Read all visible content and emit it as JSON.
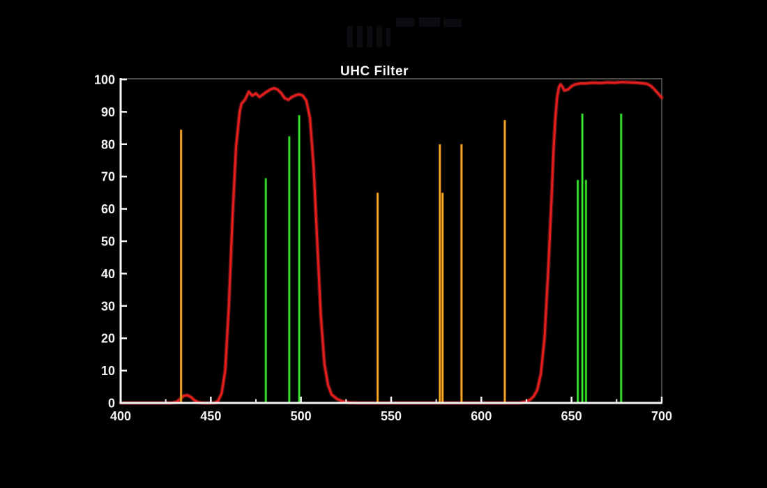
{
  "title": "UHC Filter",
  "chart_data": {
    "type": "line",
    "title": "UHC Filter",
    "xlabel": "",
    "ylabel": "",
    "xlim": [
      400,
      700
    ],
    "ylim": [
      0,
      100
    ],
    "x_major_ticks": [
      400,
      450,
      500,
      550,
      600,
      650,
      700
    ],
    "x_minor_ticks": [
      425,
      475,
      525,
      575,
      625,
      675
    ],
    "y_ticks": [
      0,
      10,
      20,
      30,
      40,
      50,
      60,
      70,
      80,
      90,
      100
    ],
    "grid": "off",
    "legend": "none",
    "background_color": "#000000",
    "axis_color": "#f5f5f5",
    "border_color": "#4a4a4a",
    "label_color": "#f5f5f5",
    "series": [
      {
        "name": "filter-transmission-curve",
        "type": "line",
        "color": "#e51c1c",
        "glow_color": "#ff3a3a",
        "points": [
          [
            400,
            0
          ],
          [
            428,
            0
          ],
          [
            431,
            0.3
          ],
          [
            433,
            1.2
          ],
          [
            435,
            2.2
          ],
          [
            437,
            2.4
          ],
          [
            439,
            1.8
          ],
          [
            441,
            0.8
          ],
          [
            443,
            0.2
          ],
          [
            446,
            0
          ],
          [
            452,
            0
          ],
          [
            454,
            0.6
          ],
          [
            456,
            3
          ],
          [
            458,
            10
          ],
          [
            460,
            30
          ],
          [
            462,
            57
          ],
          [
            464,
            79
          ],
          [
            466,
            90
          ],
          [
            467,
            92.5
          ],
          [
            469,
            93.8
          ],
          [
            471,
            96.2
          ],
          [
            473,
            95
          ],
          [
            475,
            95.7
          ],
          [
            477,
            94.6
          ],
          [
            479,
            95.4
          ],
          [
            481,
            96.2
          ],
          [
            483,
            96.9
          ],
          [
            485,
            97.3
          ],
          [
            487,
            96.9
          ],
          [
            489,
            95.8
          ],
          [
            491,
            94.2
          ],
          [
            493,
            93.7
          ],
          [
            495,
            94.6
          ],
          [
            497,
            95.1
          ],
          [
            499,
            95.4
          ],
          [
            501,
            95
          ],
          [
            503,
            93.4
          ],
          [
            505,
            88
          ],
          [
            507,
            73
          ],
          [
            509,
            50
          ],
          [
            511,
            27
          ],
          [
            513,
            12
          ],
          [
            515,
            5.5
          ],
          [
            517,
            2.6
          ],
          [
            520,
            1.2
          ],
          [
            523,
            0.5
          ],
          [
            527,
            0.1
          ],
          [
            532,
            0
          ],
          [
            600,
            0
          ],
          [
            621,
            0
          ],
          [
            624,
            0.3
          ],
          [
            627,
            1
          ],
          [
            629,
            2
          ],
          [
            631,
            4
          ],
          [
            633,
            9
          ],
          [
            635,
            20
          ],
          [
            637,
            40
          ],
          [
            639,
            64
          ],
          [
            640,
            78
          ],
          [
            641,
            88
          ],
          [
            642,
            94.5
          ],
          [
            643,
            97.6
          ],
          [
            644,
            98.5
          ],
          [
            645,
            97.7
          ],
          [
            646,
            96.6
          ],
          [
            648,
            96.9
          ],
          [
            650,
            97.9
          ],
          [
            652,
            98.5
          ],
          [
            655,
            98.8
          ],
          [
            658,
            98.8
          ],
          [
            662,
            99
          ],
          [
            666,
            98.9
          ],
          [
            670,
            99.1
          ],
          [
            674,
            99
          ],
          [
            678,
            99.2
          ],
          [
            682,
            99.1
          ],
          [
            686,
            99
          ],
          [
            690,
            98.8
          ],
          [
            692,
            98.6
          ],
          [
            694,
            98
          ],
          [
            696,
            96.9
          ],
          [
            698,
            95.7
          ],
          [
            700,
            94.4
          ]
        ]
      },
      {
        "name": "emission-lines-orange",
        "type": "vlines",
        "color": "#f59b00",
        "color_outer": "#c07300",
        "color_inner": "#ffb73a",
        "lines": [
          {
            "nm": 433.5,
            "percent": 84.5
          },
          {
            "nm": 542.5,
            "percent": 65
          },
          {
            "nm": 577,
            "percent": 80
          },
          {
            "nm": 578.5,
            "percent": 65
          },
          {
            "nm": 589,
            "percent": 80
          },
          {
            "nm": 613,
            "percent": 87.5
          }
        ]
      },
      {
        "name": "emission-lines-green",
        "type": "vlines",
        "color": "#2bd52b",
        "color_outer": "#12a212",
        "color_inner": "#4bee3e",
        "lines": [
          {
            "nm": 480.5,
            "percent": 69.5
          },
          {
            "nm": 493.5,
            "percent": 82.5
          },
          {
            "nm": 499,
            "percent": 89
          },
          {
            "nm": 653.5,
            "percent": 69
          },
          {
            "nm": 656,
            "percent": 89.5
          },
          {
            "nm": 658,
            "percent": 69
          },
          {
            "nm": 677.5,
            "percent": 89.5
          }
        ]
      }
    ]
  }
}
